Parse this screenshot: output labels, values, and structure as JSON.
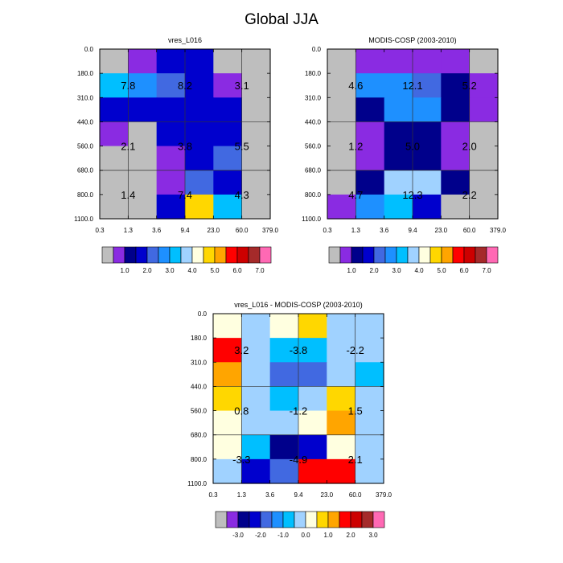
{
  "page": {
    "title": "Global JJA"
  },
  "chart_data": [
    {
      "type": "heatmap",
      "title": "vres_L016",
      "x_ticks": [
        "0.3",
        "1.3",
        "3.6",
        "9.4",
        "23.0",
        "60.0",
        "379.0"
      ],
      "y_ticks": [
        "0.0",
        "180.0",
        "310.0",
        "440.0",
        "560.0",
        "680.0",
        "800.0",
        "1100.0"
      ],
      "rows": 7,
      "cols": 6,
      "cells": [
        [
          0,
          1,
          3,
          3,
          0,
          0
        ],
        [
          6,
          5,
          4,
          3,
          1,
          0
        ],
        [
          3,
          3,
          3,
          3,
          3,
          0
        ],
        [
          1,
          0,
          3,
          3,
          3,
          0
        ],
        [
          0,
          0,
          1,
          3,
          4,
          0
        ],
        [
          0,
          0,
          1,
          4,
          3,
          0
        ],
        [
          0,
          0,
          3,
          9,
          6,
          0
        ]
      ],
      "labels": [
        {
          "text": "7.8",
          "row": 1.5,
          "col": 1
        },
        {
          "text": "8.2",
          "row": 1.5,
          "col": 3
        },
        {
          "text": "3.1",
          "row": 1.5,
          "col": 5
        },
        {
          "text": "2.1",
          "row": 4,
          "col": 1
        },
        {
          "text": "3.8",
          "row": 4,
          "col": 3
        },
        {
          "text": "5.5",
          "row": 4,
          "col": 5
        },
        {
          "text": "1.4",
          "row": 6,
          "col": 1
        },
        {
          "text": "7.4",
          "row": 6,
          "col": 3
        },
        {
          "text": "4.3",
          "row": 6,
          "col": 5
        }
      ],
      "colorbar": {
        "colors": [
          "#bebebe",
          "#8a2be2",
          "#00008b",
          "#0000cd",
          "#4169e1",
          "#1e90ff",
          "#00bfff",
          "#a0d2ff",
          "#ffffe0",
          "#ffd700",
          "#ffa500",
          "#ff0000",
          "#cd0000",
          "#a52a2a",
          "#ff69b4"
        ],
        "labels": [
          "1.0",
          "2.0",
          "3.0",
          "4.0",
          "5.0",
          "6.0",
          "7.0"
        ]
      }
    },
    {
      "type": "heatmap",
      "title": "MODIS-COSP (2003-2010)",
      "x_ticks": [
        "0.3",
        "1.3",
        "3.6",
        "9.4",
        "23.0",
        "60.0",
        "379.0"
      ],
      "y_ticks": [
        "0.0",
        "180.0",
        "310.0",
        "440.0",
        "560.0",
        "680.0",
        "800.0",
        "1100.0"
      ],
      "rows": 7,
      "cols": 6,
      "cells": [
        [
          0,
          1,
          1,
          1,
          1,
          0
        ],
        [
          0,
          5,
          5,
          4,
          2,
          1
        ],
        [
          0,
          2,
          5,
          5,
          2,
          1
        ],
        [
          0,
          1,
          2,
          2,
          1,
          0
        ],
        [
          0,
          1,
          2,
          2,
          1,
          0
        ],
        [
          0,
          2,
          7,
          7,
          2,
          0
        ],
        [
          1,
          5,
          6,
          3,
          0,
          0
        ]
      ],
      "labels": [
        {
          "text": "4.6",
          "row": 1.5,
          "col": 1
        },
        {
          "text": "12.1",
          "row": 1.5,
          "col": 3
        },
        {
          "text": "5.2",
          "row": 1.5,
          "col": 5
        },
        {
          "text": "1.2",
          "row": 4,
          "col": 1
        },
        {
          "text": "5.0",
          "row": 4,
          "col": 3
        },
        {
          "text": "2.0",
          "row": 4,
          "col": 5
        },
        {
          "text": "4.7",
          "row": 6,
          "col": 1
        },
        {
          "text": "12.3",
          "row": 6,
          "col": 3
        },
        {
          "text": "2.2",
          "row": 6,
          "col": 5
        }
      ],
      "colorbar": {
        "colors": [
          "#bebebe",
          "#8a2be2",
          "#00008b",
          "#0000cd",
          "#4169e1",
          "#1e90ff",
          "#00bfff",
          "#a0d2ff",
          "#ffffe0",
          "#ffd700",
          "#ffa500",
          "#ff0000",
          "#cd0000",
          "#a52a2a",
          "#ff69b4"
        ],
        "labels": [
          "1.0",
          "2.0",
          "3.0",
          "4.0",
          "5.0",
          "6.0",
          "7.0"
        ]
      }
    },
    {
      "type": "heatmap",
      "title": "vres_L016 - MODIS-COSP (2003-2010)",
      "x_ticks": [
        "0.3",
        "1.3",
        "3.6",
        "9.4",
        "23.0",
        "60.0",
        "379.0"
      ],
      "y_ticks": [
        "0.0",
        "180.0",
        "310.0",
        "440.0",
        "560.0",
        "680.0",
        "800.0",
        "1100.0"
      ],
      "rows": 7,
      "cols": 6,
      "cells": [
        [
          8,
          7,
          8,
          9,
          7,
          7
        ],
        [
          11,
          7,
          6,
          6,
          7,
          7
        ],
        [
          10,
          7,
          4,
          4,
          7,
          6
        ],
        [
          9,
          7,
          6,
          7,
          9,
          7
        ],
        [
          8,
          7,
          7,
          8,
          10,
          7
        ],
        [
          8,
          6,
          2,
          3,
          8,
          7
        ],
        [
          7,
          3,
          4,
          11,
          11,
          7
        ]
      ],
      "labels": [
        {
          "text": "3.2",
          "row": 1.5,
          "col": 1
        },
        {
          "text": "-3.8",
          "row": 1.5,
          "col": 3
        },
        {
          "text": "-2.2",
          "row": 1.5,
          "col": 5
        },
        {
          "text": "0.8",
          "row": 4,
          "col": 1
        },
        {
          "text": "-1.2",
          "row": 4,
          "col": 3
        },
        {
          "text": "1.5",
          "row": 4,
          "col": 5
        },
        {
          "text": "-3.3",
          "row": 6,
          "col": 1
        },
        {
          "text": "-4.9",
          "row": 6,
          "col": 3
        },
        {
          "text": "2.1",
          "row": 6,
          "col": 5
        }
      ],
      "colorbar": {
        "colors": [
          "#bebebe",
          "#8a2be2",
          "#00008b",
          "#0000cd",
          "#4169e1",
          "#1e90ff",
          "#00bfff",
          "#a0d2ff",
          "#ffffe0",
          "#ffd700",
          "#ffa500",
          "#ff0000",
          "#cd0000",
          "#a52a2a",
          "#ff69b4"
        ],
        "labels": [
          "-3.0",
          "-2.0",
          "-1.0",
          "0.0",
          "1.0",
          "2.0",
          "3.0"
        ]
      }
    }
  ]
}
